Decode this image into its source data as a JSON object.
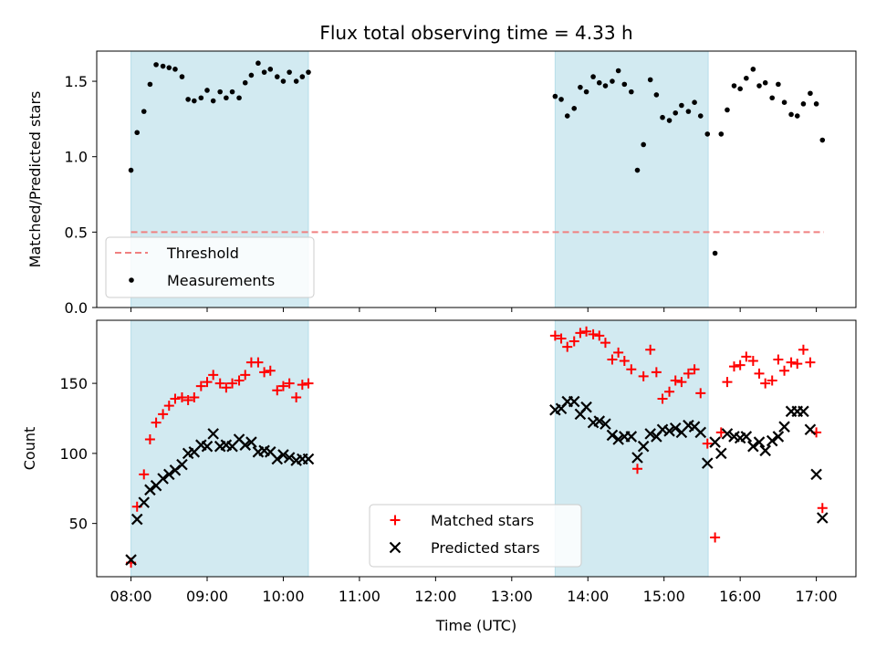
{
  "chart_data": {
    "type": "scatter",
    "title": "Flux total observing time = 4.33 h",
    "xlabel": "Time (UTC)",
    "x_ticks": [
      "08:00",
      "09:00",
      "10:00",
      "11:00",
      "12:00",
      "13:00",
      "14:00",
      "15:00",
      "16:00",
      "17:00"
    ],
    "x_range_hours": [
      7.55,
      17.52
    ],
    "shaded_intervals_hours": [
      [
        8.0,
        10.33
      ],
      [
        13.57,
        15.58
      ]
    ],
    "shade_color": "#add8e6",
    "panels": [
      {
        "ylabel": "Matched/Predicted stars",
        "ylim": [
          0,
          1.7
        ],
        "y_ticks": [
          0.0,
          0.5,
          1.0,
          1.5
        ],
        "y_tick_labels": [
          "0.0",
          "0.5",
          "1.0",
          "1.5"
        ],
        "legend_position": "lower-left",
        "threshold": {
          "name": "Threshold",
          "value": 0.5,
          "x_start": 8.0,
          "x_end": 17.1,
          "color": "#f08080"
        },
        "series": [
          {
            "name": "Measurements",
            "color": "#000000",
            "marker": "dot",
            "points": [
              [
                8.0,
                0.91
              ],
              [
                8.08,
                1.16
              ],
              [
                8.17,
                1.3
              ],
              [
                8.25,
                1.48
              ],
              [
                8.33,
                1.61
              ],
              [
                8.42,
                1.6
              ],
              [
                8.5,
                1.59
              ],
              [
                8.58,
                1.58
              ],
              [
                8.67,
                1.53
              ],
              [
                8.75,
                1.38
              ],
              [
                8.83,
                1.37
              ],
              [
                8.92,
                1.39
              ],
              [
                9.0,
                1.44
              ],
              [
                9.08,
                1.37
              ],
              [
                9.17,
                1.43
              ],
              [
                9.25,
                1.39
              ],
              [
                9.33,
                1.43
              ],
              [
                9.42,
                1.39
              ],
              [
                9.5,
                1.49
              ],
              [
                9.58,
                1.54
              ],
              [
                9.67,
                1.62
              ],
              [
                9.75,
                1.56
              ],
              [
                9.83,
                1.58
              ],
              [
                9.92,
                1.53
              ],
              [
                10.0,
                1.5
              ],
              [
                10.08,
                1.56
              ],
              [
                10.17,
                1.5
              ],
              [
                10.25,
                1.53
              ],
              [
                10.33,
                1.56
              ],
              [
                13.57,
                1.4
              ],
              [
                13.65,
                1.38
              ],
              [
                13.73,
                1.27
              ],
              [
                13.82,
                1.32
              ],
              [
                13.9,
                1.46
              ],
              [
                13.98,
                1.43
              ],
              [
                14.07,
                1.53
              ],
              [
                14.15,
                1.49
              ],
              [
                14.23,
                1.47
              ],
              [
                14.32,
                1.5
              ],
              [
                14.4,
                1.57
              ],
              [
                14.48,
                1.48
              ],
              [
                14.57,
                1.43
              ],
              [
                14.65,
                0.91
              ],
              [
                14.73,
                1.08
              ],
              [
                14.82,
                1.51
              ],
              [
                14.9,
                1.41
              ],
              [
                14.98,
                1.26
              ],
              [
                15.07,
                1.24
              ],
              [
                15.15,
                1.29
              ],
              [
                15.23,
                1.34
              ],
              [
                15.32,
                1.3
              ],
              [
                15.4,
                1.36
              ],
              [
                15.48,
                1.27
              ],
              [
                15.57,
                1.15
              ],
              [
                15.67,
                0.36
              ],
              [
                15.75,
                1.15
              ],
              [
                15.83,
                1.31
              ],
              [
                15.92,
                1.47
              ],
              [
                16.0,
                1.45
              ],
              [
                16.08,
                1.52
              ],
              [
                16.17,
                1.58
              ],
              [
                16.25,
                1.47
              ],
              [
                16.33,
                1.49
              ],
              [
                16.42,
                1.39
              ],
              [
                16.5,
                1.48
              ],
              [
                16.58,
                1.36
              ],
              [
                16.67,
                1.28
              ],
              [
                16.75,
                1.27
              ],
              [
                16.83,
                1.35
              ],
              [
                16.92,
                1.42
              ],
              [
                17.0,
                1.35
              ],
              [
                17.08,
                1.11
              ]
            ]
          }
        ]
      },
      {
        "ylabel": "Count",
        "ylim": [
          12,
          195
        ],
        "y_ticks": [
          50,
          100,
          150
        ],
        "y_tick_labels": [
          "50",
          "100",
          "150"
        ],
        "legend_position": "lower-center",
        "series": [
          {
            "name": "Matched stars",
            "color": "#ff0000",
            "marker": "plus",
            "points": [
              [
                8.0,
                22
              ],
              [
                8.08,
                62
              ],
              [
                8.17,
                85
              ],
              [
                8.25,
                110
              ],
              [
                8.33,
                122
              ],
              [
                8.42,
                128
              ],
              [
                8.5,
                134
              ],
              [
                8.58,
                139
              ],
              [
                8.67,
                140
              ],
              [
                8.75,
                138
              ],
              [
                8.83,
                140
              ],
              [
                8.92,
                148
              ],
              [
                9.0,
                151
              ],
              [
                9.08,
                156
              ],
              [
                9.17,
                150
              ],
              [
                9.25,
                147
              ],
              [
                9.33,
                150
              ],
              [
                9.42,
                152
              ],
              [
                9.5,
                156
              ],
              [
                9.58,
                165
              ],
              [
                9.67,
                165
              ],
              [
                9.75,
                158
              ],
              [
                9.83,
                159
              ],
              [
                9.92,
                145
              ],
              [
                10.0,
                148
              ],
              [
                10.08,
                150
              ],
              [
                10.17,
                140
              ],
              [
                10.25,
                149
              ],
              [
                10.33,
                150
              ],
              [
                13.57,
                184
              ],
              [
                13.65,
                182
              ],
              [
                13.73,
                176
              ],
              [
                13.82,
                180
              ],
              [
                13.9,
                186
              ],
              [
                13.98,
                187
              ],
              [
                14.07,
                185
              ],
              [
                14.15,
                184
              ],
              [
                14.23,
                179
              ],
              [
                14.32,
                167
              ],
              [
                14.4,
                172
              ],
              [
                14.48,
                166
              ],
              [
                14.57,
                160
              ],
              [
                14.65,
                89
              ],
              [
                14.73,
                155
              ],
              [
                14.82,
                174
              ],
              [
                14.9,
                158
              ],
              [
                14.98,
                139
              ],
              [
                15.07,
                144
              ],
              [
                15.15,
                152
              ],
              [
                15.23,
                151
              ],
              [
                15.32,
                157
              ],
              [
                15.4,
                160
              ],
              [
                15.48,
                143
              ],
              [
                15.57,
                107
              ],
              [
                15.67,
                40
              ],
              [
                15.75,
                115
              ],
              [
                15.83,
                151
              ],
              [
                15.92,
                162
              ],
              [
                16.0,
                163
              ],
              [
                16.08,
                169
              ],
              [
                16.17,
                166
              ],
              [
                16.25,
                157
              ],
              [
                16.33,
                150
              ],
              [
                16.42,
                152
              ],
              [
                16.5,
                167
              ],
              [
                16.58,
                159
              ],
              [
                16.67,
                165
              ],
              [
                16.75,
                164
              ],
              [
                16.83,
                174
              ],
              [
                16.92,
                165
              ],
              [
                17.0,
                115
              ],
              [
                17.08,
                61
              ]
            ]
          },
          {
            "name": "Predicted stars",
            "color": "#000000",
            "marker": "x",
            "points": [
              [
                8.0,
                24
              ],
              [
                8.08,
                53
              ],
              [
                8.17,
                65
              ],
              [
                8.25,
                74
              ],
              [
                8.33,
                77
              ],
              [
                8.42,
                82
              ],
              [
                8.5,
                85
              ],
              [
                8.58,
                88
              ],
              [
                8.67,
                92
              ],
              [
                8.75,
                100
              ],
              [
                8.83,
                101
              ],
              [
                8.92,
                106
              ],
              [
                9.0,
                105
              ],
              [
                9.08,
                114
              ],
              [
                9.17,
                105
              ],
              [
                9.25,
                106
              ],
              [
                9.33,
                105
              ],
              [
                9.42,
                110
              ],
              [
                9.5,
                106
              ],
              [
                9.58,
                108
              ],
              [
                9.67,
                101
              ],
              [
                9.75,
                102
              ],
              [
                9.83,
                101
              ],
              [
                9.92,
                96
              ],
              [
                10.0,
                99
              ],
              [
                10.08,
                97
              ],
              [
                10.17,
                95
              ],
              [
                10.25,
                96
              ],
              [
                10.33,
                96
              ],
              [
                13.57,
                131
              ],
              [
                13.65,
                132
              ],
              [
                13.73,
                137
              ],
              [
                13.82,
                137
              ],
              [
                13.9,
                128
              ],
              [
                13.98,
                133
              ],
              [
                14.07,
                122
              ],
              [
                14.15,
                123
              ],
              [
                14.23,
                121
              ],
              [
                14.32,
                113
              ],
              [
                14.4,
                110
              ],
              [
                14.48,
                112
              ],
              [
                14.57,
                112
              ],
              [
                14.65,
                97
              ],
              [
                14.73,
                105
              ],
              [
                14.82,
                114
              ],
              [
                14.9,
                112
              ],
              [
                14.98,
                117
              ],
              [
                15.07,
                116
              ],
              [
                15.15,
                118
              ],
              [
                15.23,
                115
              ],
              [
                15.32,
                120
              ],
              [
                15.4,
                119
              ],
              [
                15.48,
                115
              ],
              [
                15.57,
                93
              ],
              [
                15.67,
                108
              ],
              [
                15.75,
                100
              ],
              [
                15.83,
                114
              ],
              [
                15.92,
                112
              ],
              [
                16.0,
                111
              ],
              [
                16.08,
                112
              ],
              [
                16.17,
                105
              ],
              [
                16.25,
                108
              ],
              [
                16.33,
                102
              ],
              [
                16.42,
                109
              ],
              [
                16.5,
                112
              ],
              [
                16.58,
                119
              ],
              [
                16.67,
                130
              ],
              [
                16.75,
                130
              ],
              [
                16.83,
                130
              ],
              [
                16.92,
                117
              ],
              [
                17.0,
                85
              ],
              [
                17.08,
                54
              ]
            ]
          }
        ]
      }
    ]
  }
}
